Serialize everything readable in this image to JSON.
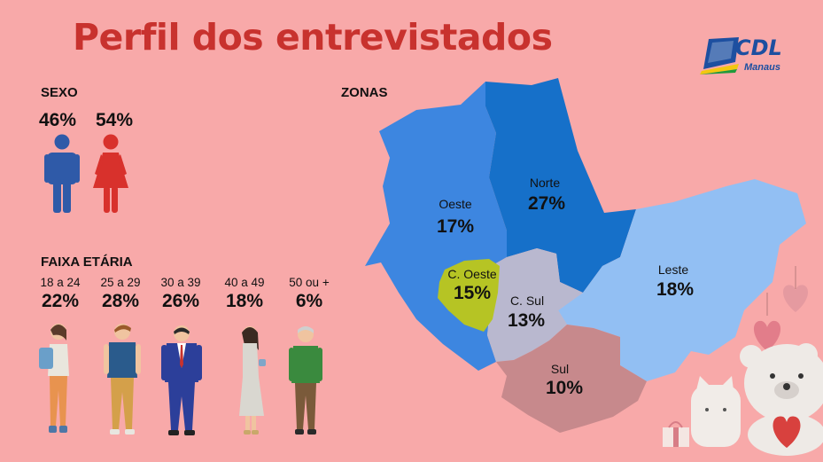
{
  "title": "Perfil dos entrevistados",
  "logo": {
    "name": "CDL",
    "sub": "Manaus"
  },
  "sexo": {
    "label": "SEXO",
    "male_pct": "46%",
    "female_pct": "54%"
  },
  "faixa": {
    "label": "FAIXA ETÁRIA",
    "groups": [
      {
        "range": "18 a 24",
        "pct": "22%"
      },
      {
        "range": "25 a 29",
        "pct": "28%"
      },
      {
        "range": "30 a 39",
        "pct": "26%"
      },
      {
        "range": "40 a 49",
        "pct": "18%"
      },
      {
        "range": "50 ou +",
        "pct": "6%"
      }
    ]
  },
  "zonas": {
    "label": "ZONAS",
    "regions": [
      {
        "name": "Oeste",
        "pct": "17%"
      },
      {
        "name": "Norte",
        "pct": "27%"
      },
      {
        "name": "C. Oeste",
        "pct": "15%"
      },
      {
        "name": "C. Sul",
        "pct": "13%"
      },
      {
        "name": "Leste",
        "pct": "18%"
      },
      {
        "name": "Sul",
        "pct": "10%"
      }
    ]
  },
  "colors": {
    "background": "#f8a9a9",
    "title": "#c8322e",
    "male": "#2f5aa8",
    "female": "#d8312c",
    "oeste": "#3d86e0",
    "norte": "#1670c9",
    "c_oeste": "#b6c424",
    "c_sul": "#b9b8cf",
    "leste": "#92bff3",
    "sul": "#c7898c"
  },
  "chart_data": [
    {
      "type": "bar",
      "title": "SEXO",
      "categories": [
        "Masculino",
        "Feminino"
      ],
      "values": [
        46,
        54
      ]
    },
    {
      "type": "bar",
      "title": "FAIXA ETÁRIA",
      "categories": [
        "18 a 24",
        "25 a 29",
        "30 a 39",
        "40 a 49",
        "50 ou +"
      ],
      "values": [
        22,
        28,
        26,
        18,
        6
      ]
    },
    {
      "type": "table",
      "title": "ZONAS",
      "categories": [
        "Oeste",
        "Norte",
        "C. Oeste",
        "C. Sul",
        "Leste",
        "Sul"
      ],
      "values": [
        17,
        27,
        15,
        13,
        18,
        10
      ]
    }
  ]
}
